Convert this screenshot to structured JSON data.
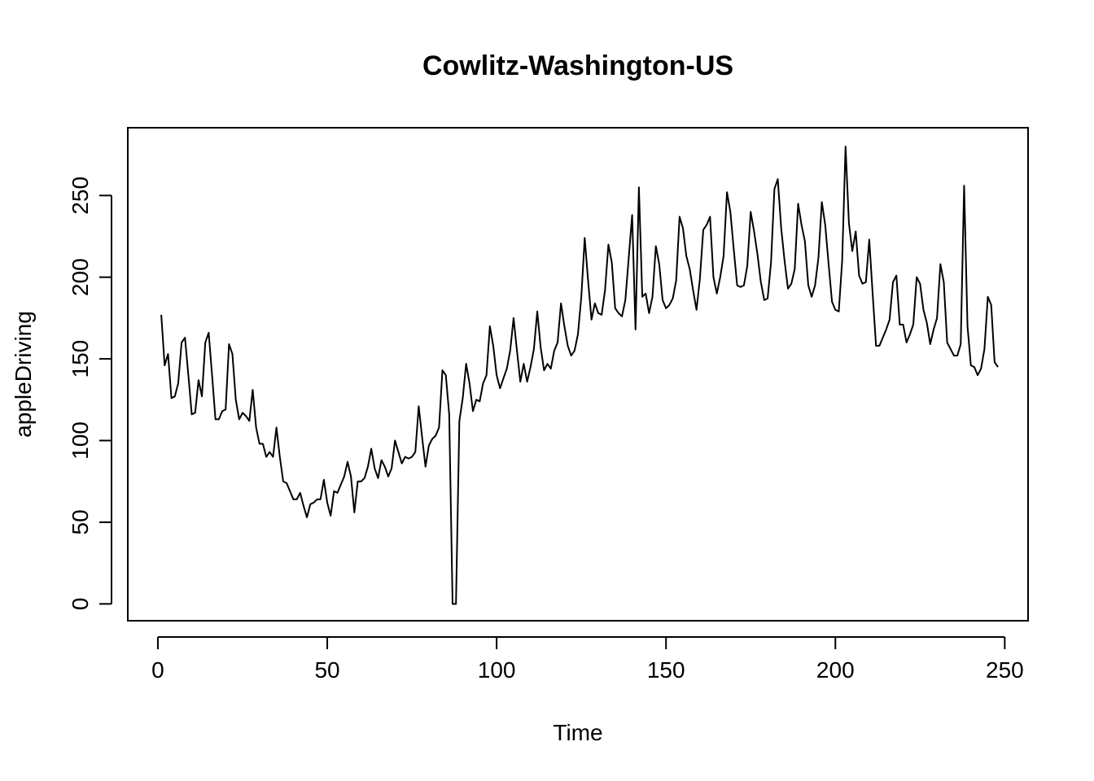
{
  "chart_data": {
    "type": "line",
    "title": "Cowlitz-Washington-US",
    "xlabel": "Time",
    "ylabel": "appleDriving",
    "xlim": [
      -8.88,
      256.88
    ],
    "ylim": [
      -10.3,
      291.5
    ],
    "xticks": [
      0,
      50,
      100,
      150,
      200,
      250
    ],
    "yticks": [
      0,
      50,
      100,
      150,
      200,
      250
    ],
    "grid": false,
    "series": [
      {
        "x": [
          1,
          2,
          3,
          4,
          5,
          6,
          7,
          8,
          9,
          10,
          11,
          12,
          13,
          14,
          15,
          16,
          17,
          18,
          19,
          20,
          21,
          22,
          23,
          24,
          25,
          26,
          27,
          28,
          29,
          30,
          31,
          32,
          33,
          34,
          35,
          36,
          37,
          38,
          39,
          40,
          41,
          42,
          43,
          44,
          45,
          46,
          47,
          48,
          49,
          50,
          51,
          52,
          53,
          54,
          55,
          56,
          57,
          58,
          59,
          60,
          61,
          62,
          63,
          64,
          65,
          66,
          67,
          68,
          69,
          70,
          71,
          72,
          73,
          74,
          75,
          76,
          77,
          78,
          79,
          80,
          81,
          82,
          83,
          84,
          85,
          86,
          87,
          88,
          89,
          90,
          91,
          92,
          93,
          94,
          95,
          96,
          97,
          98,
          99,
          100,
          101,
          102,
          103,
          104,
          105,
          106,
          107,
          108,
          109,
          110,
          111,
          112,
          113,
          114,
          115,
          116,
          117,
          118,
          119,
          120,
          121,
          122,
          123,
          124,
          125,
          126,
          127,
          128,
          129,
          130,
          131,
          132,
          133,
          134,
          135,
          136,
          137,
          138,
          139,
          140,
          141,
          142,
          143,
          144,
          145,
          146,
          147,
          148,
          149,
          150,
          151,
          152,
          153,
          154,
          155,
          156,
          157,
          158,
          159,
          160,
          161,
          162,
          163,
          164,
          165,
          166,
          167,
          168,
          169,
          170,
          171,
          172,
          173,
          174,
          175,
          176,
          177,
          178,
          179,
          180,
          181,
          182,
          183,
          184,
          185,
          186,
          187,
          188,
          189,
          190,
          191,
          192,
          193,
          194,
          195,
          196,
          197,
          198,
          199,
          200,
          201,
          202,
          203,
          204,
          205,
          206,
          207,
          208,
          209,
          210,
          211,
          212,
          213,
          214,
          215,
          216,
          217,
          218,
          219,
          220,
          221,
          222,
          223,
          224,
          225,
          226,
          227,
          228,
          229,
          230,
          231,
          232,
          233,
          234,
          235,
          236,
          237,
          238,
          239,
          240,
          241,
          242,
          243,
          244,
          245,
          246,
          247,
          248
        ],
        "y": [
          177,
          146,
          153,
          126,
          127,
          135,
          160,
          163,
          140,
          116,
          117,
          137,
          127,
          160,
          166,
          140,
          113,
          113,
          118,
          119,
          159,
          153,
          125,
          113,
          117,
          115,
          112,
          131,
          108,
          98,
          98,
          90,
          93,
          90,
          108,
          90,
          75,
          74,
          69,
          64,
          64,
          68,
          60,
          53,
          61,
          62,
          64,
          64,
          76,
          62,
          54,
          69,
          68,
          73,
          78,
          87,
          78,
          56,
          75,
          75,
          77,
          84,
          95,
          83,
          77,
          88,
          84,
          78,
          83,
          100,
          93,
          86,
          90,
          89,
          90,
          93,
          121,
          102,
          84,
          97,
          101,
          103,
          108,
          143,
          140,
          116,
          0,
          0,
          112,
          126,
          147,
          135,
          118,
          125,
          124,
          135,
          140,
          170,
          158,
          140,
          132,
          138,
          144,
          155,
          175,
          155,
          136,
          147,
          136,
          145,
          156,
          179,
          157,
          143,
          147,
          144,
          155,
          160,
          184,
          170,
          158,
          152,
          155,
          165,
          188,
          224,
          198,
          174,
          184,
          178,
          177,
          192,
          220,
          209,
          181,
          178,
          176,
          186,
          212,
          238,
          168,
          255,
          188,
          190,
          178,
          188,
          219,
          208,
          186,
          181,
          183,
          187,
          198,
          237,
          230,
          213,
          205,
          192,
          180,
          199,
          229,
          232,
          237,
          200,
          190,
          200,
          213,
          252,
          240,
          217,
          195,
          194,
          195,
          207,
          240,
          228,
          214,
          197,
          186,
          187,
          209,
          254,
          260,
          230,
          210,
          193,
          196,
          205,
          245,
          232,
          222,
          195,
          188,
          195,
          212,
          246,
          232,
          208,
          185,
          180,
          179,
          210,
          280,
          233,
          216,
          228,
          201,
          196,
          197,
          223,
          190,
          158,
          158,
          163,
          168,
          174,
          197,
          201,
          171,
          171,
          160,
          165,
          171,
          200,
          196,
          180,
          172,
          159,
          168,
          175,
          208,
          197,
          160,
          156,
          152,
          152,
          159,
          256,
          170,
          146,
          145,
          140,
          144,
          156,
          188,
          183,
          148,
          145
        ]
      }
    ]
  }
}
